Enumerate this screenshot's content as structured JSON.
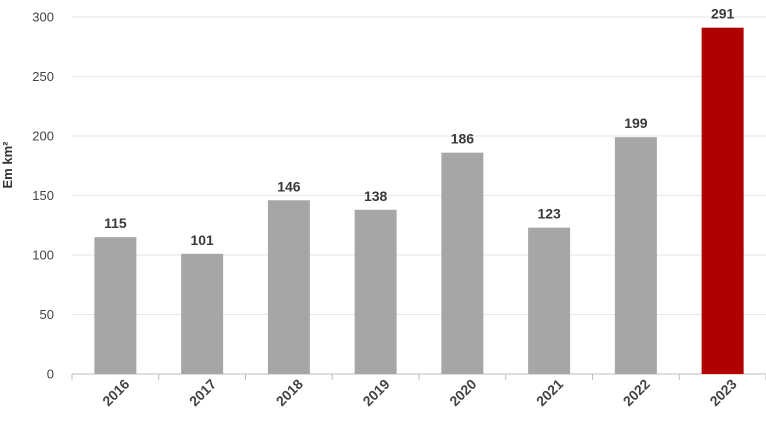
{
  "chart_data": {
    "type": "bar",
    "title": "",
    "xlabel": "",
    "ylabel": "Em km²",
    "categories": [
      "2016",
      "2017",
      "2018",
      "2019",
      "2020",
      "2021",
      "2022",
      "2023"
    ],
    "values": [
      115,
      101,
      146,
      138,
      186,
      123,
      199,
      291
    ],
    "data_labels": [
      "115",
      "101",
      "146",
      "138",
      "186",
      "123",
      "199",
      "291"
    ],
    "y_ticks": [
      "0",
      "50",
      "100",
      "150",
      "200",
      "250",
      "300"
    ],
    "ylim": [
      0,
      300
    ],
    "grid": true,
    "colors": {
      "default_bar": "#a6a6a6",
      "highlight_bar": "#b00000",
      "highlight_category": "2023"
    }
  }
}
